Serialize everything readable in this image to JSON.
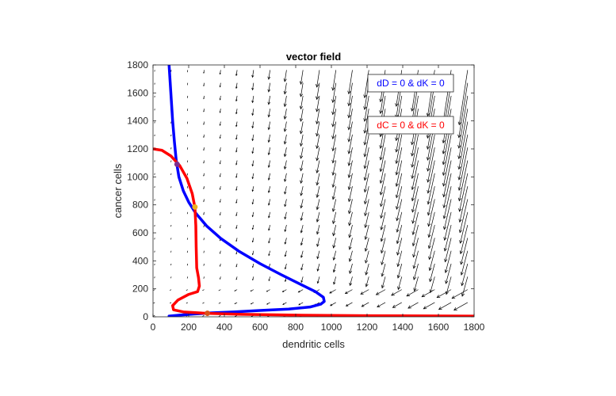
{
  "chart_data": {
    "type": "line",
    "title": "vector field",
    "xlabel": "dendritic cells",
    "ylabel": "cancer cells",
    "xlim": [
      0,
      1800
    ],
    "ylim": [
      0,
      1800
    ],
    "xticks": [
      0,
      200,
      400,
      600,
      800,
      1000,
      1200,
      1400,
      1600,
      1800
    ],
    "yticks": [
      0,
      200,
      400,
      600,
      800,
      1000,
      1200,
      1400,
      1600,
      1800
    ],
    "grid": false,
    "background_layer": "quiver vector field (black arrows) on a 20x20 grid, arrow length growing with x and y",
    "legend": [
      {
        "label": "dD = 0 & dK = 0",
        "color": "#0000ff"
      },
      {
        "label": "dC = 0 & dK = 0",
        "color": "#ff0000"
      }
    ],
    "series": [
      {
        "name": "dD = 0 & dK = 0",
        "color": "#0000ff",
        "x": [
          90,
          100,
          110,
          120,
          130,
          145,
          170,
          200,
          240,
          300,
          380,
          480,
          600,
          720,
          830,
          910,
          955,
          960,
          940,
          880,
          760,
          600,
          450,
          330,
          230,
          150,
          90
        ],
        "y": [
          1800,
          1600,
          1400,
          1250,
          1120,
          1000,
          900,
          820,
          740,
          650,
          560,
          470,
          380,
          300,
          230,
          180,
          140,
          110,
          90,
          70,
          55,
          45,
          35,
          28,
          20,
          12,
          5
        ]
      },
      {
        "name": "dC = 0 & dK = 0",
        "color": "#ff0000",
        "x": [
          0,
          50,
          100,
          150,
          190,
          220,
          235,
          240,
          242,
          245,
          255,
          260,
          250,
          200,
          140,
          110,
          115,
          170,
          300,
          500,
          800,
          1200,
          1800
        ],
        "y": [
          1200,
          1190,
          1150,
          1080,
          990,
          880,
          780,
          650,
          500,
          350,
          280,
          220,
          180,
          160,
          120,
          80,
          50,
          35,
          25,
          18,
          12,
          8,
          5
        ]
      }
    ],
    "equilibria": [
      {
        "x": 135,
        "y": 1090,
        "color": "#7e2f8e"
      },
      {
        "x": 235,
        "y": 785,
        "color": "#edb120"
      },
      {
        "x": 305,
        "y": 25,
        "color": "#d95319"
      }
    ]
  }
}
